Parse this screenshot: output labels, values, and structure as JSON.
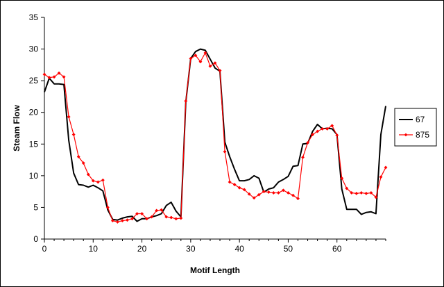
{
  "chart_data": {
    "type": "line",
    "title": "",
    "xlabel": "Motif Length",
    "ylabel": "Steam Flow",
    "xlim": [
      0,
      70
    ],
    "ylim": [
      0,
      35
    ],
    "x_ticks": [
      0,
      10,
      20,
      30,
      40,
      50,
      60
    ],
    "y_ticks": [
      0,
      5,
      10,
      15,
      20,
      25,
      30,
      35
    ],
    "grid": false,
    "legend_position": "right",
    "series": [
      {
        "name": "67",
        "color": "#000000",
        "marker": "none",
        "x": [
          0,
          1,
          2,
          3,
          4,
          5,
          6,
          7,
          8,
          9,
          10,
          11,
          12,
          13,
          14,
          15,
          16,
          17,
          18,
          19,
          20,
          21,
          22,
          23,
          24,
          25,
          26,
          27,
          28,
          29,
          30,
          31,
          32,
          33,
          34,
          35,
          36,
          37,
          38,
          39,
          40,
          41,
          42,
          43,
          44,
          45,
          46,
          47,
          48,
          49,
          50,
          51,
          52,
          53,
          54,
          55,
          56,
          57,
          58,
          59,
          60,
          61,
          62,
          63,
          64,
          65,
          66,
          67,
          68,
          69,
          70
        ],
        "values": [
          23.2,
          25.4,
          24.5,
          24.5,
          24.4,
          15.6,
          10.4,
          8.6,
          8.5,
          8.2,
          8.5,
          8.1,
          7.6,
          4.6,
          3.1,
          3.0,
          3.3,
          3.5,
          3.6,
          2.8,
          3.2,
          3.2,
          3.5,
          3.7,
          4.0,
          5.3,
          5.8,
          4.4,
          3.5,
          21.6,
          28.5,
          29.6,
          30.0,
          29.8,
          28.4,
          27.0,
          26.5,
          15.3,
          13.0,
          11.0,
          9.2,
          9.2,
          9.4,
          10.0,
          9.6,
          7.4,
          7.9,
          8.1,
          9.0,
          9.4,
          9.9,
          11.5,
          11.6,
          15.0,
          15.1,
          17.0,
          18.1,
          17.4,
          17.5,
          17.4,
          16.5,
          7.9,
          4.7,
          4.7,
          4.7,
          3.9,
          4.2,
          4.3,
          4.0,
          16.5,
          21.0
        ]
      },
      {
        "name": "875",
        "color": "#ff0000",
        "marker": "diamond",
        "x": [
          0,
          1,
          2,
          3,
          4,
          5,
          6,
          7,
          8,
          9,
          10,
          11,
          12,
          13,
          14,
          15,
          16,
          17,
          18,
          19,
          20,
          21,
          22,
          23,
          24,
          25,
          26,
          27,
          28,
          29,
          30,
          31,
          32,
          33,
          34,
          35,
          36,
          37,
          38,
          39,
          40,
          41,
          42,
          43,
          44,
          45,
          46,
          47,
          48,
          49,
          50,
          51,
          52,
          53,
          54,
          55,
          56,
          57,
          58,
          59,
          60,
          61,
          62,
          63,
          64,
          65,
          66,
          67,
          68,
          69,
          70
        ],
        "values": [
          26.0,
          25.5,
          25.6,
          26.2,
          25.6,
          19.3,
          16.5,
          13.0,
          12.0,
          10.2,
          9.2,
          9.0,
          9.3,
          5.0,
          2.9,
          2.7,
          2.9,
          3.0,
          3.2,
          4.0,
          4.0,
          3.2,
          3.5,
          4.5,
          4.6,
          3.5,
          3.4,
          3.2,
          3.3,
          21.8,
          28.5,
          29.0,
          28.0,
          29.4,
          27.3,
          27.8,
          26.6,
          13.8,
          9.0,
          8.6,
          8.1,
          7.8,
          7.1,
          6.5,
          7.0,
          7.5,
          7.4,
          7.3,
          7.3,
          7.7,
          7.3,
          6.9,
          6.4,
          12.9,
          15.2,
          16.5,
          17.0,
          17.4,
          17.4,
          17.9,
          16.4,
          9.6,
          8.0,
          7.3,
          7.2,
          7.3,
          7.2,
          7.3,
          6.6,
          9.8,
          11.3
        ]
      }
    ]
  }
}
